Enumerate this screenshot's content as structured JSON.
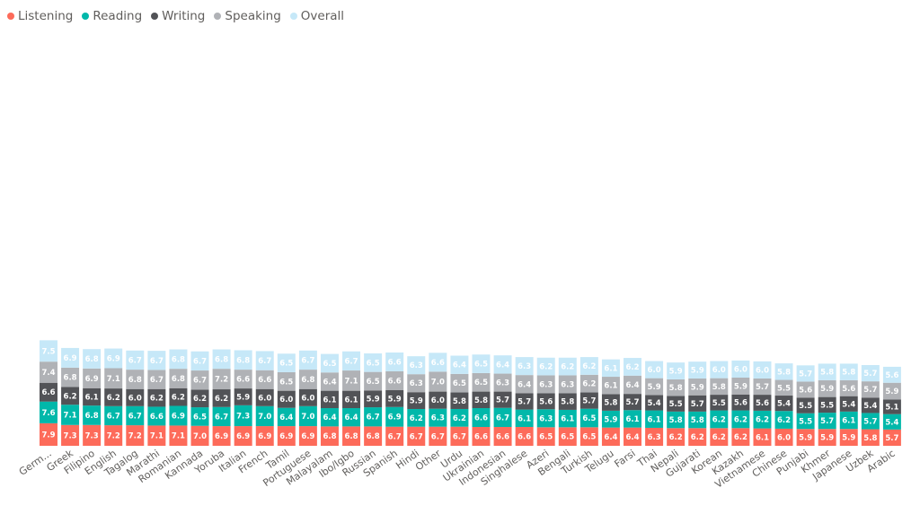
{
  "chart_data": {
    "type": "bar",
    "stacked": true,
    "title": "",
    "xlabel": "",
    "ylabel": "",
    "legend_position": "top-left",
    "grid": false,
    "categories": [
      "Germ...",
      "Greek",
      "Filipino",
      "English",
      "Tagalog",
      "Marathi",
      "Romanian",
      "Kannada",
      "Yoruba",
      "Italian",
      "French",
      "Tamil",
      "Portuguese",
      "Malayalam",
      "Ibo/Igbo",
      "Russian",
      "Spanish",
      "Hindi",
      "Other",
      "Urdu",
      "Ukrainian",
      "Indonesian",
      "Singhalese",
      "Azeri",
      "Bengali",
      "Turkish",
      "Telugu",
      "Farsi",
      "Thai",
      "Nepali",
      "Gujarati",
      "Korean",
      "Kazakh",
      "Vietnamese",
      "Chinese",
      "Punjabi",
      "Khmer",
      "Japanese",
      "Uzbek",
      "Arabic"
    ],
    "series": [
      {
        "name": "Listening",
        "color": "#fd6b5a",
        "values": [
          7.9,
          7.3,
          7.3,
          7.2,
          7.2,
          7.1,
          7.1,
          7.0,
          6.9,
          6.9,
          6.9,
          6.9,
          6.9,
          6.8,
          6.8,
          6.8,
          6.7,
          6.7,
          6.7,
          6.7,
          6.6,
          6.6,
          6.6,
          6.5,
          6.5,
          6.5,
          6.4,
          6.4,
          6.3,
          6.2,
          6.2,
          6.2,
          6.2,
          6.1,
          6.0,
          5.9,
          5.9,
          5.9,
          5.8,
          5.7
        ]
      },
      {
        "name": "Reading",
        "color": "#01b8aa",
        "values": [
          7.6,
          7.1,
          6.8,
          6.7,
          6.7,
          6.6,
          6.9,
          6.5,
          6.7,
          7.3,
          7.0,
          6.4,
          7.0,
          6.4,
          6.4,
          6.7,
          6.9,
          6.2,
          6.3,
          6.2,
          6.6,
          6.7,
          6.1,
          6.3,
          6.1,
          6.5,
          5.9,
          6.1,
          6.1,
          5.8,
          5.8,
          6.2,
          6.2,
          6.2,
          6.2,
          5.5,
          5.7,
          6.1,
          5.7,
          5.4
        ]
      },
      {
        "name": "Writing",
        "color": "#525357",
        "values": [
          6.6,
          6.2,
          6.1,
          6.2,
          6.0,
          6.2,
          6.2,
          6.2,
          6.2,
          5.9,
          6.0,
          6.0,
          6.0,
          6.1,
          6.1,
          5.9,
          5.9,
          5.9,
          6.0,
          5.8,
          5.8,
          5.7,
          5.7,
          5.6,
          5.8,
          5.7,
          5.8,
          5.7,
          5.4,
          5.5,
          5.7,
          5.5,
          5.6,
          5.6,
          5.4,
          5.5,
          5.5,
          5.4,
          5.4,
          5.1
        ]
      },
      {
        "name": "Speaking",
        "color": "#b0b2b6",
        "values": [
          7.4,
          6.8,
          6.9,
          7.1,
          6.8,
          6.7,
          6.8,
          6.7,
          7.2,
          6.6,
          6.6,
          6.5,
          6.8,
          6.4,
          7.1,
          6.5,
          6.6,
          6.3,
          7.0,
          6.5,
          6.5,
          6.3,
          6.4,
          6.3,
          6.3,
          6.2,
          6.1,
          6.4,
          5.9,
          5.8,
          5.9,
          5.8,
          5.9,
          5.7,
          5.5,
          5.6,
          5.9,
          5.6,
          5.7,
          5.9
        ]
      },
      {
        "name": "Overall",
        "color": "#c6e8f8",
        "values": [
          7.5,
          6.9,
          6.8,
          6.9,
          6.7,
          6.7,
          6.8,
          6.7,
          6.8,
          6.8,
          6.7,
          6.5,
          6.7,
          6.5,
          6.7,
          6.5,
          6.6,
          6.3,
          6.6,
          6.4,
          6.5,
          6.4,
          6.3,
          6.2,
          6.2,
          6.2,
          6.1,
          6.2,
          6.0,
          5.9,
          5.9,
          6.0,
          6.0,
          6.0,
          5.8,
          5.7,
          5.8,
          5.8,
          5.7,
          5.6
        ]
      }
    ]
  }
}
